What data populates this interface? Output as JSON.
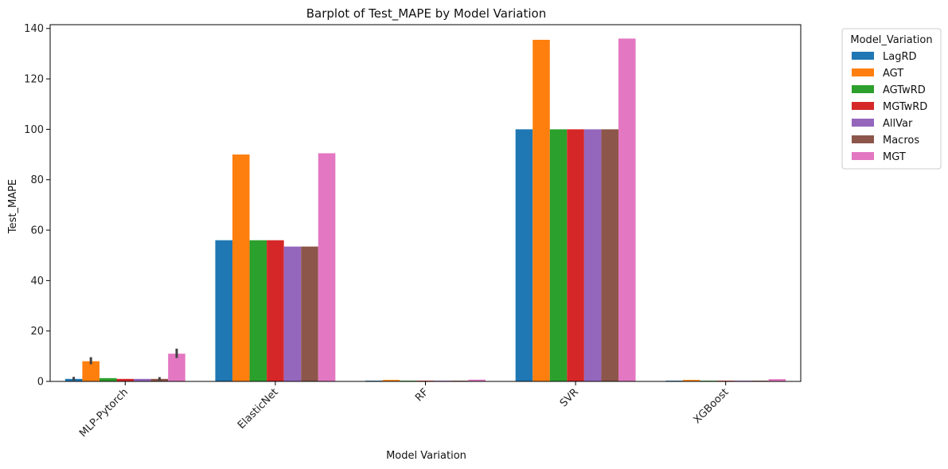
{
  "chart_data": {
    "type": "bar",
    "title": "Barplot of Test_MAPE by Model Variation",
    "xlabel": "Model Variation",
    "ylabel": "Test_MAPE",
    "ylim": [
      0,
      141.5
    ],
    "yticks": [
      0,
      20,
      40,
      60,
      80,
      100,
      120,
      140
    ],
    "categories": [
      "MLP-Pytorch",
      "ElasticNet",
      "RF",
      "SVR",
      "XGBoost"
    ],
    "legend": {
      "title": "Model_Variation",
      "placement": "outside-right"
    },
    "series": [
      {
        "name": "LagRD",
        "color": "#1f77b4",
        "values": [
          1.0,
          56.0,
          0.3,
          100.0,
          0.3
        ],
        "err": [
          [
            0.4,
            1.8
          ],
          null,
          null,
          null,
          null
        ]
      },
      {
        "name": "AGT",
        "color": "#ff7f0e",
        "values": [
          8.0,
          90.0,
          0.6,
          135.5,
          0.6
        ],
        "err": [
          [
            6.8,
            9.6
          ],
          null,
          null,
          null,
          null
        ]
      },
      {
        "name": "AGTwRD",
        "color": "#2ca02c",
        "values": [
          1.3,
          56.0,
          0.3,
          100.0,
          0.3
        ],
        "err": [
          null,
          null,
          null,
          null,
          null
        ]
      },
      {
        "name": "MGTwRD",
        "color": "#d62728",
        "values": [
          1.0,
          56.0,
          0.3,
          100.0,
          0.3
        ],
        "err": [
          null,
          null,
          null,
          null,
          null
        ]
      },
      {
        "name": "AllVar",
        "color": "#9467bd",
        "values": [
          1.0,
          53.5,
          0.3,
          100.0,
          0.3
        ],
        "err": [
          null,
          null,
          null,
          null,
          null
        ]
      },
      {
        "name": "Macros",
        "color": "#8c564b",
        "values": [
          1.0,
          53.5,
          0.3,
          100.0,
          0.3
        ],
        "err": [
          [
            0.4,
            1.7
          ],
          null,
          null,
          null,
          null
        ]
      },
      {
        "name": "MGT",
        "color": "#e377c2",
        "values": [
          11.0,
          90.5,
          0.7,
          136.0,
          0.9
        ],
        "err": [
          [
            9.3,
            13.0
          ],
          null,
          null,
          null,
          null
        ]
      }
    ]
  }
}
